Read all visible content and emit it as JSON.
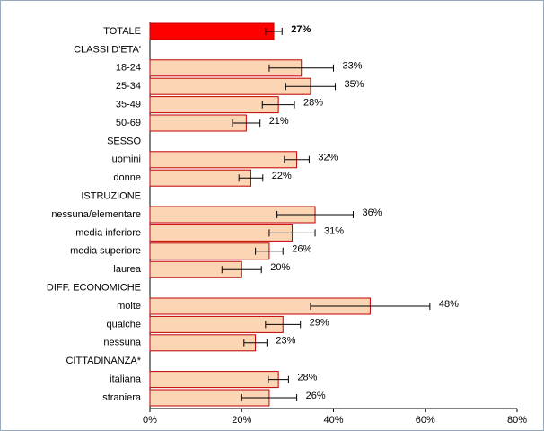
{
  "chart_data": {
    "type": "hbar",
    "categories": [
      "TOTALE",
      "CLASSI D'ETA'",
      "18-24",
      "25-34",
      "35-49",
      "50-69",
      "SESSO",
      "uomini",
      "donne",
      "ISTRUZIONE",
      "nessuna/elementare",
      "media inferiore",
      "media superiore",
      "laurea",
      "DIFF. ECONOMICHE",
      "molte",
      "qualche",
      "nessuna",
      "CITTADINANZA*",
      "italiana",
      "straniera"
    ],
    "values": [
      27,
      null,
      33,
      35,
      28,
      21,
      null,
      32,
      22,
      null,
      36,
      31,
      26,
      20,
      null,
      48,
      29,
      23,
      null,
      28,
      26
    ],
    "value_labels": [
      "27%",
      null,
      "33%",
      "35%",
      "28%",
      "21%",
      null,
      "32%",
      "22%",
      null,
      "36%",
      "31%",
      "26%",
      "20%",
      null,
      "48%",
      "29%",
      "23%",
      null,
      "28%",
      "26%"
    ],
    "errors": [
      1.8,
      null,
      7,
      5.4,
      3.5,
      3,
      null,
      2.7,
      2.6,
      null,
      8.3,
      5,
      3,
      4.3,
      null,
      13,
      3.8,
      2.5,
      null,
      2.2,
      6
    ],
    "colors": [
      "#ff0000",
      null,
      "#fcd5b4",
      "#fcd5b4",
      "#fcd5b4",
      "#fcd5b4",
      null,
      "#fcd5b4",
      "#fcd5b4",
      null,
      "#fcd5b4",
      "#fcd5b4",
      "#fcd5b4",
      "#fcd5b4",
      null,
      "#fcd5b4",
      "#fcd5b4",
      "#fcd5b4",
      null,
      "#fcd5b4",
      "#fcd5b4"
    ],
    "edge_color": "#c00000",
    "xlim": [
      0,
      80
    ],
    "xticks": [
      {
        "value": 0,
        "label": "0%"
      },
      {
        "value": 20,
        "label": "20%"
      },
      {
        "value": 40,
        "label": "40%"
      },
      {
        "value": 60,
        "label": "60%"
      },
      {
        "value": 80,
        "label": "80%"
      }
    ],
    "grid": false
  }
}
